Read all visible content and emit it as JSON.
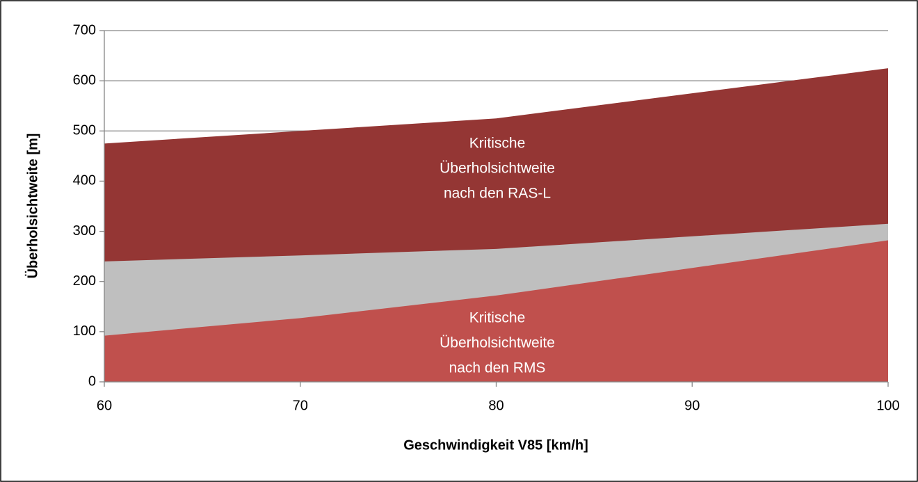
{
  "chart_data": {
    "type": "area",
    "x_label": "Geschwindigkeit V85 [km/h]",
    "y_label": "Überholsichtweite  [m]",
    "x": [
      60,
      70,
      80,
      90,
      100
    ],
    "series": [
      {
        "color": "#943634",
        "values": [
          475,
          500,
          525,
          575,
          625
        ]
      },
      {
        "color": "#bfbfbf",
        "values": [
          240,
          252,
          265,
          290,
          315
        ]
      },
      {
        "color": "#c0504d",
        "values": [
          92,
          127,
          172,
          227,
          282
        ]
      }
    ],
    "annotations": [
      {
        "lines": [
          "Kritische",
          "Überholsichtweite",
          "nach den RAS-L"
        ]
      },
      {
        "lines": [
          "Kritische",
          "Überholsichtweite",
          "nach den RMS"
        ]
      }
    ],
    "xlim": [
      60,
      100
    ],
    "xticks": [
      60,
      70,
      80,
      90,
      100
    ],
    "ylim": [
      0,
      700
    ],
    "yticks": [
      0,
      100,
      200,
      300,
      400,
      500,
      600,
      700
    ],
    "grid": true
  }
}
